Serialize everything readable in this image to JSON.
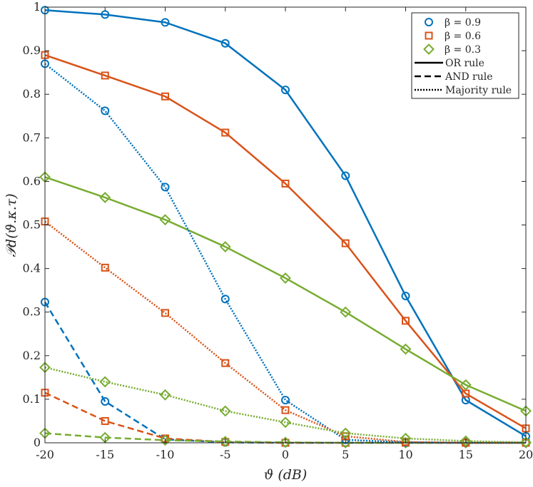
{
  "chart_data": {
    "type": "line",
    "title": "",
    "xlabel": "ϑ (dB)",
    "ylabel": "𝒫d(ϑ.κ.τ)",
    "xlim": [
      -20,
      20
    ],
    "ylim": [
      0,
      1
    ],
    "x_ticks": [
      -20,
      -15,
      -10,
      -5,
      0,
      5,
      10,
      15,
      20
    ],
    "y_ticks": [
      0,
      0.1,
      0.2,
      0.3,
      0.4,
      0.5,
      0.6,
      0.7,
      0.8,
      0.9,
      1
    ],
    "grid": false,
    "legend_position": "top-right",
    "x": [
      -20,
      -15,
      -10,
      -5,
      0,
      5,
      10,
      15,
      20
    ],
    "colors": {
      "beta_0.9": "#0072BD",
      "beta_0.6": "#D95319",
      "beta_0.3": "#77AC30"
    },
    "markers": {
      "beta_0.9": "circle",
      "beta_0.6": "square",
      "beta_0.3": "diamond"
    },
    "legend": [
      {
        "label": "β = 0.9",
        "marker": "circle",
        "color": "#0072BD"
      },
      {
        "label": "β = 0.6",
        "marker": "square",
        "color": "#D95319"
      },
      {
        "label": "β = 0.3",
        "marker": "diamond",
        "color": "#77AC30"
      },
      {
        "label": "OR rule",
        "line": "solid",
        "color": "#000000"
      },
      {
        "label": "AND rule",
        "line": "dashed",
        "color": "#000000"
      },
      {
        "label": "Majority rule",
        "line": "dotted",
        "color": "#000000"
      }
    ],
    "series": [
      {
        "beta": "0.9",
        "rule": "OR",
        "color": "#0072BD",
        "marker": "circle",
        "line": "solid",
        "values": [
          0.993,
          0.983,
          0.965,
          0.917,
          0.81,
          0.613,
          0.337,
          0.098,
          0.015
        ]
      },
      {
        "beta": "0.6",
        "rule": "OR",
        "color": "#D95319",
        "marker": "square",
        "line": "solid",
        "values": [
          0.89,
          0.843,
          0.795,
          0.712,
          0.595,
          0.458,
          0.28,
          0.113,
          0.033
        ]
      },
      {
        "beta": "0.3",
        "rule": "OR",
        "color": "#77AC30",
        "marker": "diamond",
        "line": "solid",
        "values": [
          0.61,
          0.563,
          0.512,
          0.45,
          0.378,
          0.3,
          0.215,
          0.133,
          0.073
        ]
      },
      {
        "beta": "0.9",
        "rule": "AND",
        "color": "#0072BD",
        "marker": "circle",
        "line": "dashed",
        "values": [
          0.323,
          0.095,
          0.008,
          0.001,
          0.0,
          0.0,
          0.0,
          0.0,
          0.0
        ]
      },
      {
        "beta": "0.6",
        "rule": "AND",
        "color": "#D95319",
        "marker": "square",
        "line": "dashed",
        "values": [
          0.115,
          0.05,
          0.01,
          0.002,
          0.0,
          0.0,
          0.0,
          0.0,
          0.0
        ]
      },
      {
        "beta": "0.3",
        "rule": "AND",
        "color": "#77AC30",
        "marker": "diamond",
        "line": "dashed",
        "values": [
          0.022,
          0.012,
          0.006,
          0.003,
          0.001,
          0.0,
          0.0,
          0.0,
          0.0
        ]
      },
      {
        "beta": "0.9",
        "rule": "Majority",
        "color": "#0072BD",
        "marker": "circle",
        "line": "dotted",
        "values": [
          0.87,
          0.762,
          0.587,
          0.33,
          0.098,
          0.007,
          0.001,
          0.0,
          0.0
        ]
      },
      {
        "beta": "0.6",
        "rule": "Majority",
        "color": "#D95319",
        "marker": "square",
        "line": "dotted",
        "values": [
          0.508,
          0.402,
          0.298,
          0.183,
          0.075,
          0.015,
          0.002,
          0.0,
          0.0
        ]
      },
      {
        "beta": "0.3",
        "rule": "Majority",
        "color": "#77AC30",
        "marker": "diamond",
        "line": "dotted",
        "values": [
          0.173,
          0.14,
          0.11,
          0.073,
          0.047,
          0.022,
          0.01,
          0.004,
          0.001
        ]
      }
    ]
  }
}
